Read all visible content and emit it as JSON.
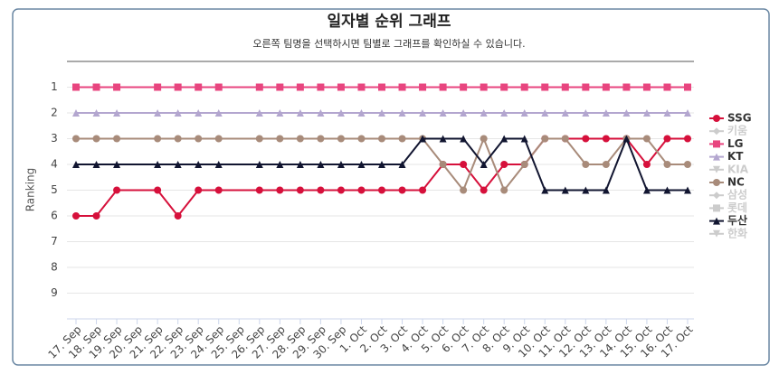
{
  "chart_data": {
    "type": "line",
    "title": "일자별 순위 그래프",
    "subtitle": "오른쪽 팀명을 선택하시면 팀별로 그래프를 확인하실 수 있습니다.",
    "y_label": "Ranking",
    "categories": [
      "17. Sep",
      "18. Sep",
      "19. Sep",
      "20. Sep",
      "21. Sep",
      "22. Sep",
      "23. Sep",
      "24. Sep",
      "25. Sep",
      "26. Sep",
      "27. Sep",
      "28. Sep",
      "29. Sep",
      "30. Sep",
      "1. Oct",
      "2. Oct",
      "3. Oct",
      "4. Oct",
      "5. Oct",
      "6. Oct",
      "7. Oct",
      "8. Oct",
      "9. Oct",
      "10. Oct",
      "11. Oct",
      "12. Oct",
      "13. Oct",
      "14. Oct",
      "15. Oct",
      "16. Oct",
      "17. Oct"
    ],
    "ylim": [
      0,
      10
    ],
    "y_reversed": true,
    "yticks": [
      1,
      2,
      3,
      4,
      5,
      6,
      7,
      8,
      9
    ],
    "grid": true,
    "connect_nulls": true,
    "legend": "right",
    "series": [
      {
        "name": "SSG",
        "color": "#d6103b",
        "marker": "circle",
        "visible": true,
        "values": [
          6,
          6,
          5,
          null,
          5,
          6,
          5,
          5,
          null,
          5,
          5,
          5,
          5,
          5,
          5,
          5,
          5,
          5,
          4,
          4,
          5,
          4,
          4,
          3,
          3,
          3,
          3,
          3,
          4,
          3,
          3
        ]
      },
      {
        "name": "키움",
        "color": "#cccccc",
        "marker": "diamond",
        "visible": false,
        "values": [
          null,
          null,
          null,
          null,
          null,
          null,
          null,
          null,
          null,
          null,
          null,
          null,
          null,
          null,
          null,
          null,
          null,
          null,
          null,
          null,
          null,
          null,
          null,
          null,
          null,
          null,
          null,
          null,
          null,
          null,
          null
        ]
      },
      {
        "name": "LG",
        "color": "#e8457f",
        "marker": "square",
        "visible": true,
        "values": [
          1,
          1,
          1,
          null,
          1,
          1,
          1,
          1,
          null,
          1,
          1,
          1,
          1,
          1,
          1,
          1,
          1,
          1,
          1,
          1,
          1,
          1,
          1,
          1,
          1,
          1,
          1,
          1,
          1,
          1,
          1
        ]
      },
      {
        "name": "KT",
        "color": "#b3a6cf",
        "marker": "triangle",
        "visible": true,
        "values": [
          2,
          2,
          2,
          null,
          2,
          2,
          2,
          2,
          null,
          2,
          2,
          2,
          2,
          2,
          2,
          2,
          2,
          2,
          2,
          2,
          2,
          2,
          2,
          2,
          2,
          2,
          2,
          2,
          2,
          2,
          2
        ]
      },
      {
        "name": "KIA",
        "color": "#cccccc",
        "marker": "triangle-down",
        "visible": false,
        "values": [
          null,
          null,
          null,
          null,
          null,
          null,
          null,
          null,
          null,
          null,
          null,
          null,
          null,
          null,
          null,
          null,
          null,
          null,
          null,
          null,
          null,
          null,
          null,
          null,
          null,
          null,
          null,
          null,
          null,
          null,
          null
        ]
      },
      {
        "name": "NC",
        "color": "#a88b7a",
        "marker": "circle",
        "visible": true,
        "values": [
          3,
          3,
          3,
          null,
          3,
          3,
          3,
          3,
          null,
          3,
          3,
          3,
          3,
          3,
          3,
          3,
          3,
          3,
          4,
          5,
          3,
          5,
          4,
          3,
          3,
          4,
          4,
          3,
          3,
          4,
          4
        ]
      },
      {
        "name": "삼성",
        "color": "#cccccc",
        "marker": "diamond",
        "visible": false,
        "values": [
          null,
          null,
          null,
          null,
          null,
          null,
          null,
          null,
          null,
          null,
          null,
          null,
          null,
          null,
          null,
          null,
          null,
          null,
          null,
          null,
          null,
          null,
          null,
          null,
          null,
          null,
          null,
          null,
          null,
          null,
          null
        ]
      },
      {
        "name": "롯데",
        "color": "#cccccc",
        "marker": "square",
        "visible": false,
        "values": [
          null,
          null,
          null,
          null,
          null,
          null,
          null,
          null,
          null,
          null,
          null,
          null,
          null,
          null,
          null,
          null,
          null,
          null,
          null,
          null,
          null,
          null,
          null,
          null,
          null,
          null,
          null,
          null,
          null,
          null,
          null
        ]
      },
      {
        "name": "두산",
        "color": "#111530",
        "marker": "triangle",
        "visible": true,
        "values": [
          4,
          4,
          4,
          null,
          4,
          4,
          4,
          4,
          null,
          4,
          4,
          4,
          4,
          4,
          4,
          4,
          4,
          3,
          3,
          3,
          4,
          3,
          3,
          5,
          5,
          5,
          5,
          3,
          5,
          5,
          5
        ]
      },
      {
        "name": "한화",
        "color": "#cccccc",
        "marker": "triangle-down",
        "visible": false,
        "values": [
          null,
          null,
          null,
          null,
          null,
          null,
          null,
          null,
          null,
          null,
          null,
          null,
          null,
          null,
          null,
          null,
          null,
          null,
          null,
          null,
          null,
          null,
          null,
          null,
          null,
          null,
          null,
          null,
          null,
          null,
          null
        ]
      }
    ]
  }
}
